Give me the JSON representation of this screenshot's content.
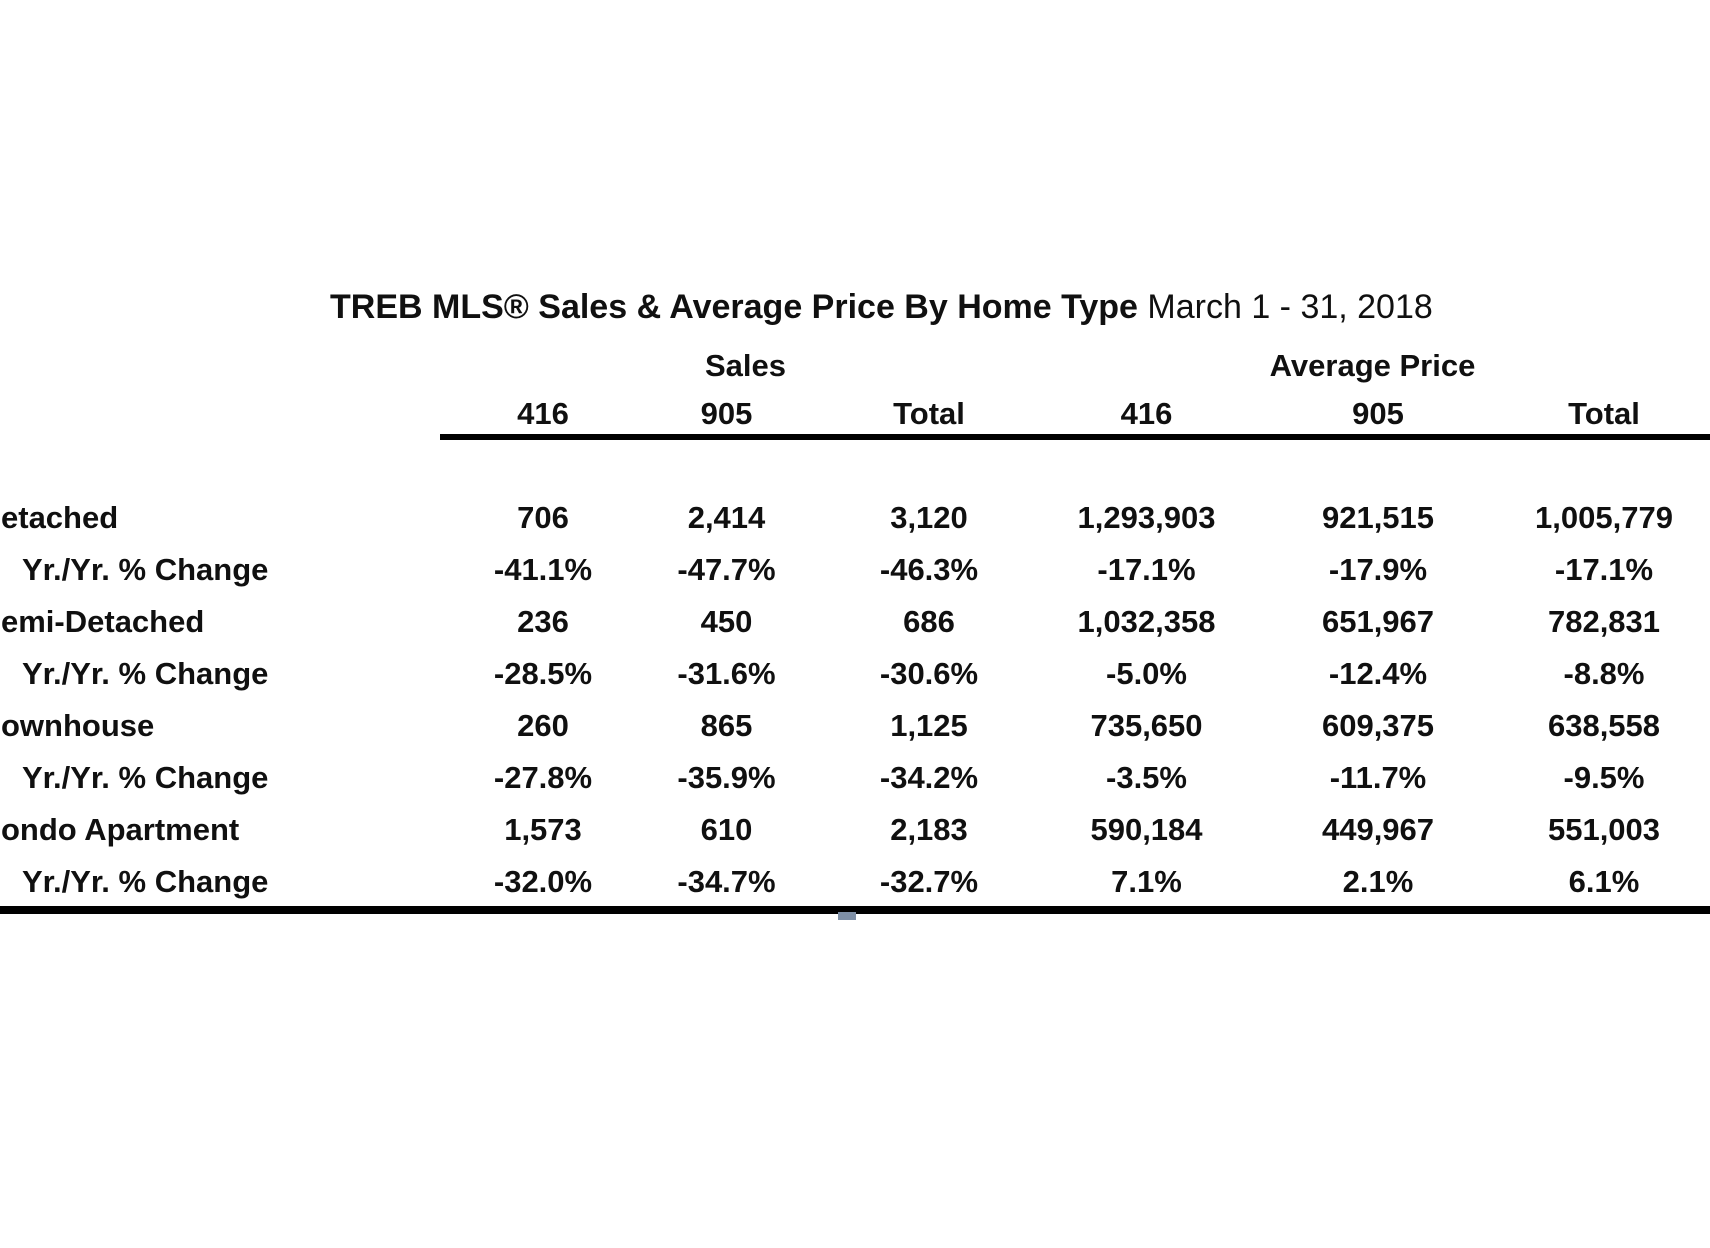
{
  "table": {
    "title": {
      "bold": "TREB MLS® Sales & Average Price  By Home Type",
      "regular": "March 1 - 31, 2018"
    },
    "group_headers": {
      "sales": "Sales",
      "average_price": "Average Price"
    },
    "column_headers": [
      "416",
      "905",
      "Total",
      "416",
      "905",
      "Total"
    ],
    "rows": [
      {
        "label": "etached",
        "values": [
          "706",
          "2,414",
          "3,120",
          "1,293,903",
          "921,515",
          "1,005,779"
        ]
      },
      {
        "label": "Yr./Yr. % Change",
        "values": [
          "-41.1%",
          "-47.7%",
          "-46.3%",
          "-17.1%",
          "-17.9%",
          "-17.1%"
        ]
      },
      {
        "label": "emi-Detached",
        "values": [
          "236",
          "450",
          "686",
          "1,032,358",
          "651,967",
          "782,831"
        ]
      },
      {
        "label": "Yr./Yr. % Change",
        "values": [
          "-28.5%",
          "-31.6%",
          "-30.6%",
          "-5.0%",
          "-12.4%",
          "-8.8%"
        ]
      },
      {
        "label": "ownhouse",
        "values": [
          "260",
          "865",
          "1,125",
          "735,650",
          "609,375",
          "638,558"
        ]
      },
      {
        "label": "Yr./Yr. % Change",
        "values": [
          "-27.8%",
          "-35.9%",
          "-34.2%",
          "-3.5%",
          "-11.7%",
          "-9.5%"
        ]
      },
      {
        "label": "ondo Apartment",
        "values": [
          "1,573",
          "610",
          "2,183",
          "590,184",
          "449,967",
          "551,003"
        ]
      },
      {
        "label": "Yr./Yr. % Change",
        "values": [
          "-32.0%",
          "-34.7%",
          "-32.7%",
          "7.1%",
          "2.1%",
          "6.1%"
        ]
      }
    ]
  },
  "colors": {
    "text": "#101010",
    "rule": "#000000",
    "artifact": "#7e8fa6"
  }
}
